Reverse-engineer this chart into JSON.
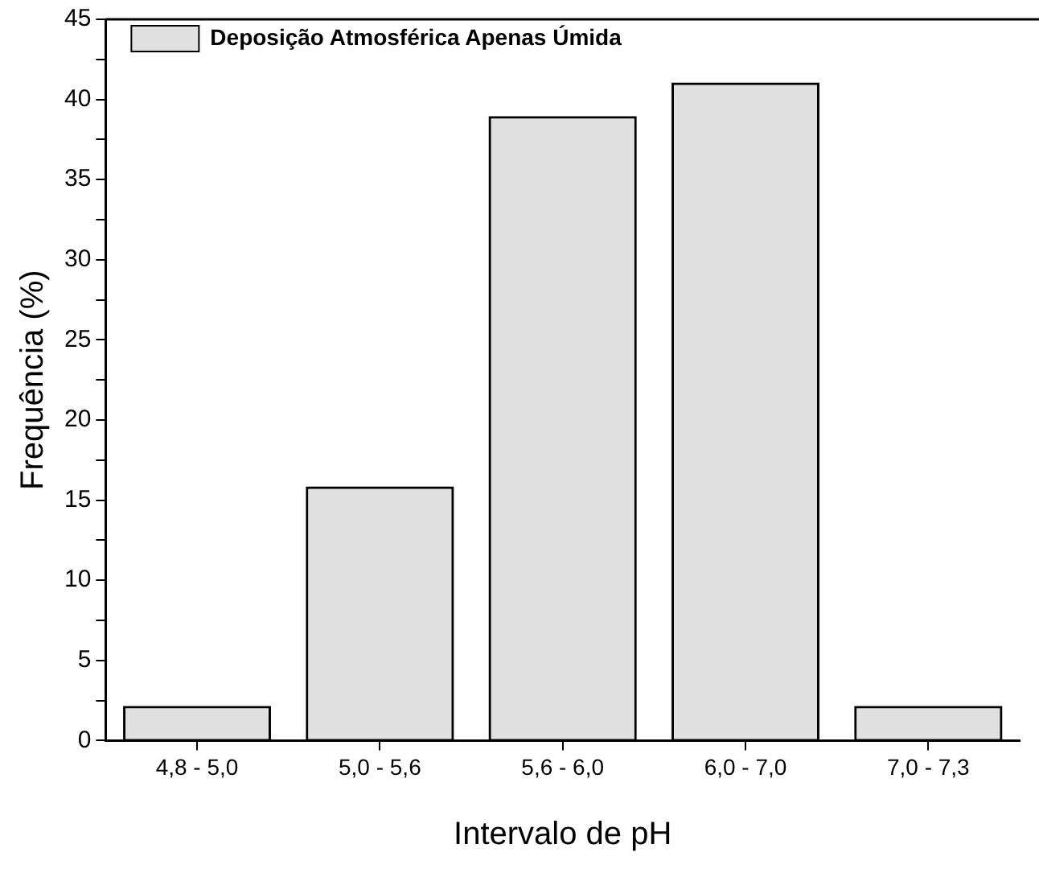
{
  "chart_data": {
    "type": "bar",
    "xlabel": "Intervalo de pH",
    "ylabel": "Frequência (%)",
    "categories": [
      "4,8 - 5,0",
      "5,0 - 5,6",
      "5,6 - 6,0",
      "6,0 - 7,0",
      "7,0 - 7,3"
    ],
    "series": [
      {
        "name": "Deposição Atmosférica Apenas Úmida",
        "color": "#e0e0e0",
        "values": [
          2.1,
          15.8,
          38.9,
          41.0,
          2.1
        ]
      }
    ],
    "ylim": [
      0,
      45
    ],
    "yticks": [
      0,
      {
        "value": 2.5,
        "label": null
      },
      5,
      {
        "value": 7.5,
        "label": null
      },
      10,
      {
        "value": 12.5,
        "label": null
      },
      15,
      {
        "value": 17.5,
        "label": null
      },
      20,
      {
        "value": 22.5,
        "label": null
      },
      25,
      {
        "value": 27.5,
        "label": null
      },
      30,
      {
        "value": 32.5,
        "label": null
      },
      35,
      {
        "value": 37.5,
        "label": null
      },
      40,
      {
        "value": 42.5,
        "label": null
      },
      45
    ],
    "grid": false,
    "legend": "top left"
  }
}
